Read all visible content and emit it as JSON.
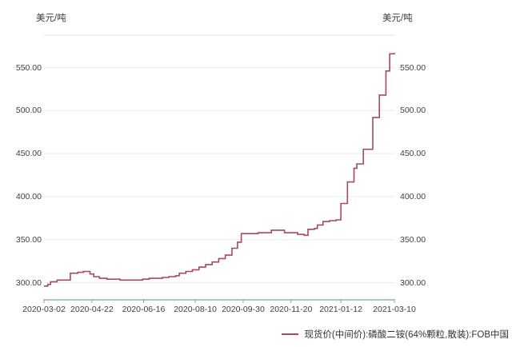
{
  "chart_data": {
    "type": "line",
    "interpolation": "step-after",
    "title": "",
    "unit_left": "美元/吨",
    "unit_right": "美元/吨",
    "grid": true,
    "legend_position": "bottom-right",
    "line_color": "#a84a58",
    "grid_color": "#ececec",
    "plot_border_color": "#e3e3e3",
    "x_axis_color": "#8fb3bd",
    "tick_color": "#94a0a6",
    "ylim": [
      280,
      588
    ],
    "y_ticks": [
      300,
      350,
      400,
      450,
      500,
      550
    ],
    "y_tick_labels": [
      "300.00",
      "350.00",
      "400.00",
      "450.00",
      "500.00",
      "550.00"
    ],
    "x_tick_labels": [
      "2020-03-02",
      "2020-04-22",
      "2020-06-16",
      "2020-08-10",
      "2020-09-30",
      "2020-11-20",
      "2021-01-12",
      "2021-03-10"
    ],
    "series": [
      {
        "name": "现货价(中间价):磷酸二铵(64%颗粒,散装):FOB中国",
        "color": "#a84a58",
        "points": [
          [
            "2020-03-02",
            296
          ],
          [
            "2020-03-06",
            298
          ],
          [
            "2020-03-09",
            301
          ],
          [
            "2020-03-16",
            303
          ],
          [
            "2020-03-23",
            303
          ],
          [
            "2020-03-30",
            311
          ],
          [
            "2020-04-07",
            312
          ],
          [
            "2020-04-13",
            313
          ],
          [
            "2020-04-20",
            310
          ],
          [
            "2020-04-24",
            307
          ],
          [
            "2020-04-30",
            305
          ],
          [
            "2020-05-08",
            304
          ],
          [
            "2020-05-15",
            304
          ],
          [
            "2020-05-22",
            303
          ],
          [
            "2020-06-01",
            303
          ],
          [
            "2020-06-08",
            303
          ],
          [
            "2020-06-15",
            304
          ],
          [
            "2020-06-22",
            305
          ],
          [
            "2020-06-29",
            305
          ],
          [
            "2020-07-06",
            306
          ],
          [
            "2020-07-13",
            307
          ],
          [
            "2020-07-20",
            308
          ],
          [
            "2020-07-24",
            311
          ],
          [
            "2020-07-31",
            313
          ],
          [
            "2020-08-07",
            315
          ],
          [
            "2020-08-14",
            318
          ],
          [
            "2020-08-21",
            321
          ],
          [
            "2020-08-28",
            324
          ],
          [
            "2020-09-04",
            328
          ],
          [
            "2020-09-11",
            332
          ],
          [
            "2020-09-18",
            340
          ],
          [
            "2020-09-24",
            347
          ],
          [
            "2020-09-28",
            357
          ],
          [
            "2020-10-09",
            357
          ],
          [
            "2020-10-16",
            358
          ],
          [
            "2020-10-23",
            358
          ],
          [
            "2020-10-30",
            361
          ],
          [
            "2020-11-06",
            361
          ],
          [
            "2020-11-13",
            358
          ],
          [
            "2020-11-20",
            358
          ],
          [
            "2020-11-27",
            356
          ],
          [
            "2020-12-04",
            355
          ],
          [
            "2020-12-08",
            362
          ],
          [
            "2020-12-15",
            363
          ],
          [
            "2020-12-18",
            367
          ],
          [
            "2020-12-24",
            371
          ],
          [
            "2020-12-31",
            372
          ],
          [
            "2021-01-07",
            373
          ],
          [
            "2021-01-12",
            392
          ],
          [
            "2021-01-19",
            417
          ],
          [
            "2021-01-26",
            433
          ],
          [
            "2021-01-29",
            438
          ],
          [
            "2021-02-05",
            455
          ],
          [
            "2021-02-15",
            492
          ],
          [
            "2021-02-22",
            518
          ],
          [
            "2021-03-01",
            546
          ],
          [
            "2021-03-05",
            566
          ],
          [
            "2021-03-10",
            567
          ]
        ]
      }
    ]
  },
  "legend": {
    "label": "现货价(中间价):磷酸二铵(64%颗粒,散装):FOB中国"
  }
}
